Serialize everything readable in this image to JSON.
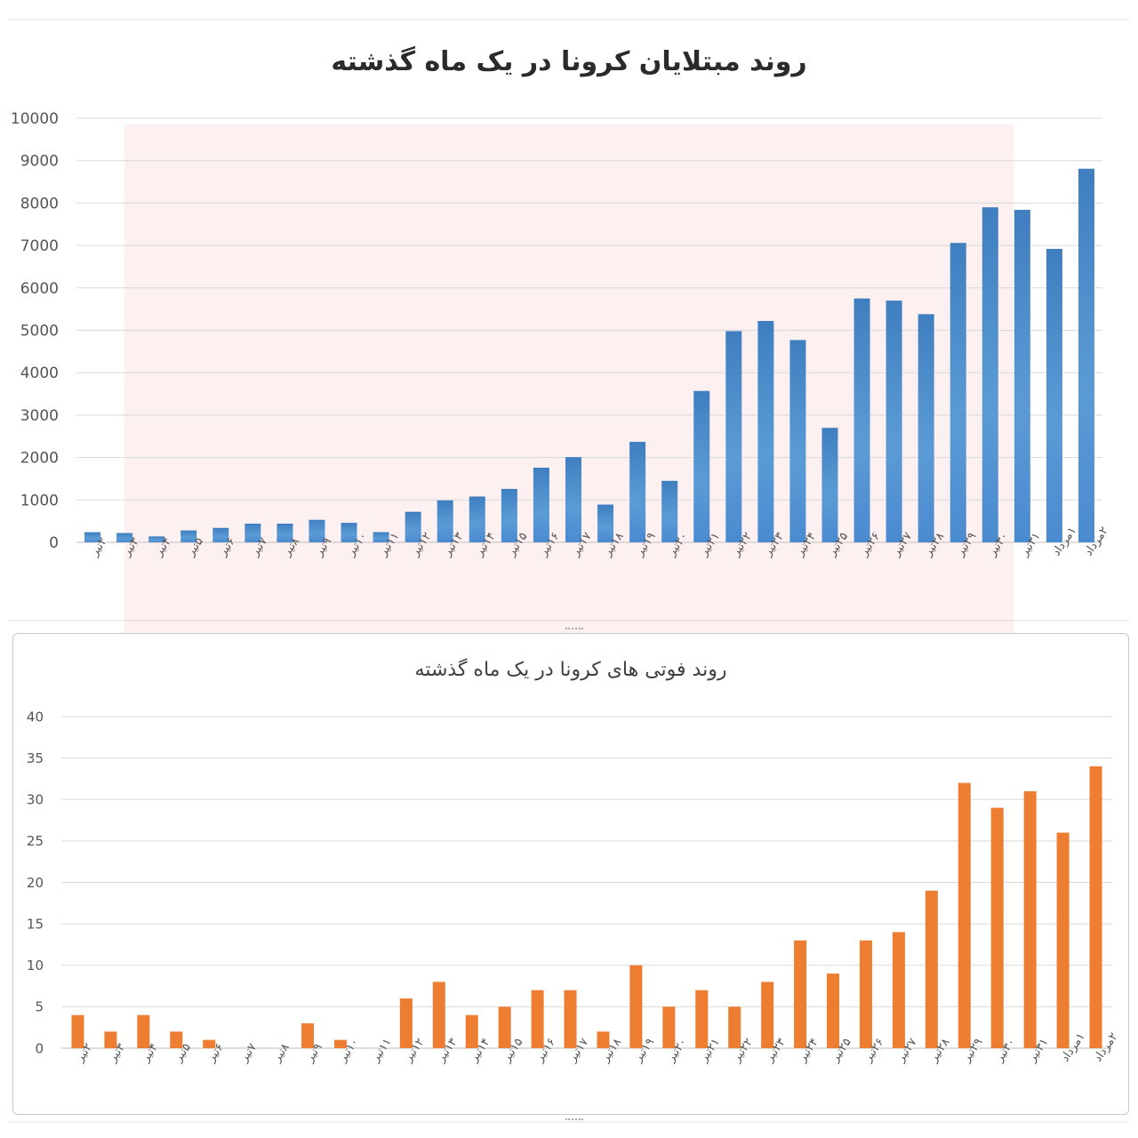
{
  "charts": {
    "top_title": "روند مبتلایان کرونا در یک ماه گذشته",
    "bottom_title": "روند فوتی های کرونا در یک ماه گذشته"
  },
  "colors": {
    "cases_bar": "#5b9bd5",
    "cases_bar_dark": "#3f7fc0",
    "deaths_bar": "#ed7d31",
    "grid": "#d9d9d9",
    "watermark_tint": "#f5d6d6"
  },
  "chart_data": [
    {
      "type": "bar",
      "title": "روند مبتلایان کرونا در یک ماه گذشته",
      "xlabel": "",
      "ylabel": "",
      "ylim": [
        0,
        10000
      ],
      "yticks": [
        0,
        1000,
        2000,
        3000,
        4000,
        5000,
        6000,
        7000,
        8000,
        9000,
        10000
      ],
      "grid": true,
      "color": "#5b9bd5",
      "categories": [
        "۲تیر",
        "۳تیر",
        "۴تیر",
        "۵تیر",
        "۶تیر",
        "۷تیر",
        "۸تیر",
        "۹تیر",
        "۱۰تیر",
        "۱۱تیر",
        "۱۲تیر",
        "۱۳تیر",
        "۱۴تیر",
        "۱۵تیر",
        "۱۶تیر",
        "۱۷تیر",
        "۱۸تیر",
        "۱۹تیر",
        "۲۰تیر",
        "۲۱تیر",
        "۲۲تیر",
        "۲۳تیر",
        "۲۴تیر",
        "۲۵تیر",
        "۲۶تیر",
        "۲۷تیر",
        "۲۸تیر",
        "۲۹تیر",
        "۳۰تیر",
        "۳۱تیر",
        "۱مرداد",
        "۲مرداد"
      ],
      "values": [
        240,
        220,
        140,
        280,
        340,
        440,
        440,
        530,
        460,
        240,
        720,
        990,
        1080,
        1260,
        1760,
        2010,
        890,
        2370,
        1450,
        3570,
        4980,
        5220,
        4770,
        2700,
        5750,
        5700,
        5380,
        7060,
        7900,
        7840,
        6920,
        8810
      ]
    },
    {
      "type": "bar",
      "title": "روند فوتی های کرونا در یک ماه گذشته",
      "xlabel": "",
      "ylabel": "",
      "ylim": [
        0,
        40
      ],
      "yticks": [
        0,
        5,
        10,
        15,
        20,
        25,
        30,
        35,
        40
      ],
      "grid": true,
      "color": "#ed7d31",
      "categories": [
        "۲تیر",
        "۳تیر",
        "۴تیر",
        "۵تیر",
        "۶تیر",
        "۷تیر",
        "۸تیر",
        "۹تیر",
        "۱۰تیر",
        "۱۱تیر",
        "۱۲تیر",
        "۱۳تیر",
        "۱۴تیر",
        "۱۵تیر",
        "۱۶تیر",
        "۱۷تیر",
        "۱۸تیر",
        "۱۹تیر",
        "۲۰تیر",
        "۲۱تیر",
        "۲۲تیر",
        "۲۳تیر",
        "۲۴تیر",
        "۲۵تیر",
        "۲۶تیر",
        "۲۷تیر",
        "۲۸تیر",
        "۲۹تیر",
        "۳۰تیر",
        "۳۱تیر",
        "۱مرداد",
        "۲مرداد"
      ],
      "values": [
        4,
        2,
        4,
        2,
        1,
        0,
        0,
        3,
        1,
        0,
        6,
        8,
        4,
        5,
        7,
        7,
        2,
        10,
        5,
        7,
        5,
        8,
        13,
        9,
        13,
        14,
        19,
        32,
        29,
        31,
        26,
        34
      ]
    }
  ]
}
